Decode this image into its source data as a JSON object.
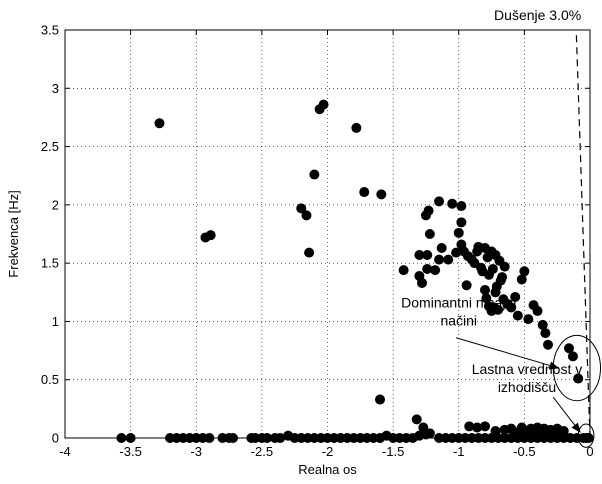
{
  "chart_data": {
    "type": "scatter",
    "title": "",
    "xlabel": "Realna os",
    "ylabel": "Frekvenca [Hz]",
    "xlim": [
      -4,
      0
    ],
    "ylim": [
      0,
      3.5
    ],
    "xticks": [
      -4,
      -3.5,
      -3,
      -2.5,
      -2,
      -1.5,
      -1,
      -0.5,
      0
    ],
    "xtick_labels": [
      "-4",
      "-3.5",
      "-3",
      "-2.5",
      "-2",
      "-1.5",
      "-1",
      "-0.5",
      "0"
    ],
    "yticks": [
      0,
      0.5,
      1,
      1.5,
      2,
      2.5,
      3,
      3.5
    ],
    "ytick_labels": [
      "0",
      "0.5",
      "1",
      "1.5",
      "2",
      "2.5",
      "3",
      "3.5"
    ],
    "grid": true,
    "marker_color": "#000000",
    "damping_line": {
      "label": "Dušenje 3.0%",
      "damping_ratio": 0.03,
      "from": [
        0,
        0
      ],
      "to": [
        -0.105,
        3.5
      ]
    },
    "annotations": [
      {
        "id": "dominant-modes",
        "lines": [
          "Dominantni nihajni",
          "načini"
        ],
        "target_circle_center": [
          -0.1,
          0.6
        ],
        "target_circle_radius": [
          0.18,
          0.28
        ]
      },
      {
        "id": "origin-eigenvalue",
        "lines": [
          "Lastna vrednost v",
          "izhodišču"
        ],
        "target_circle_center": [
          -0.03,
          0.02
        ],
        "target_circle_radius": [
          0.06,
          0.1
        ]
      }
    ],
    "series": [
      {
        "points": [
          [
            -3.28,
            2.7
          ],
          [
            -2.93,
            1.72
          ],
          [
            -2.89,
            1.74
          ],
          [
            -2.06,
            2.82
          ],
          [
            -2.03,
            2.86
          ],
          [
            -1.78,
            2.66
          ],
          [
            -2.1,
            2.26
          ],
          [
            -1.72,
            2.11
          ],
          [
            -1.59,
            2.09
          ],
          [
            -2.2,
            1.97
          ],
          [
            -2.16,
            1.91
          ],
          [
            -2.14,
            1.59
          ],
          [
            -1.25,
            1.91
          ],
          [
            -1.23,
            1.95
          ],
          [
            -1.15,
            2.03
          ],
          [
            -1.05,
            2.01
          ],
          [
            -0.98,
            1.99
          ],
          [
            -0.98,
            1.85
          ],
          [
            -1.0,
            1.76
          ],
          [
            -1.42,
            1.44
          ],
          [
            -1.3,
            1.57
          ],
          [
            -1.3,
            1.39
          ],
          [
            -1.28,
            1.33
          ],
          [
            -1.24,
            1.45
          ],
          [
            -1.24,
            1.57
          ],
          [
            -1.22,
            1.75
          ],
          [
            -1.18,
            1.44
          ],
          [
            -1.15,
            1.53
          ],
          [
            -1.13,
            1.63
          ],
          [
            -1.08,
            1.53
          ],
          [
            -1.02,
            1.59
          ],
          [
            -0.98,
            1.66
          ],
          [
            -0.96,
            1.6
          ],
          [
            -0.94,
            1.31
          ],
          [
            -0.93,
            1.56
          ],
          [
            -0.9,
            1.53
          ],
          [
            -0.88,
            1.5
          ],
          [
            -0.86,
            1.6
          ],
          [
            -0.85,
            1.64
          ],
          [
            -0.83,
            1.46
          ],
          [
            -0.82,
            1.43
          ],
          [
            -0.8,
            1.63
          ],
          [
            -0.78,
            1.55
          ],
          [
            -0.77,
            1.4
          ],
          [
            -0.75,
            1.6
          ],
          [
            -0.74,
            1.45
          ],
          [
            -0.72,
            1.57
          ],
          [
            -0.71,
            1.3
          ],
          [
            -0.69,
            1.52
          ],
          [
            -0.67,
            1.38
          ],
          [
            -0.65,
            1.47
          ],
          [
            -0.8,
            1.27
          ],
          [
            -0.79,
            1.2
          ],
          [
            -0.77,
            1.13
          ],
          [
            -0.75,
            1.09
          ],
          [
            -0.73,
            1.12
          ],
          [
            -0.72,
            1.25
          ],
          [
            -0.7,
            1.1
          ],
          [
            -0.68,
            1.35
          ],
          [
            -0.66,
            1.19
          ],
          [
            -0.63,
            1.15
          ],
          [
            -0.6,
            1.12
          ],
          [
            -0.57,
            1.21
          ],
          [
            -0.55,
            1.05
          ],
          [
            -0.52,
            1.36
          ],
          [
            -0.5,
            1.43
          ],
          [
            -0.47,
            1.02
          ],
          [
            -0.43,
            1.14
          ],
          [
            -0.4,
            1.09
          ],
          [
            -0.36,
            0.97
          ],
          [
            -0.34,
            0.9
          ],
          [
            -0.32,
            0.8
          ],
          [
            -0.16,
            0.77
          ],
          [
            -0.13,
            0.7
          ],
          [
            -0.09,
            0.51
          ],
          [
            -1.6,
            0.33
          ],
          [
            -1.32,
            0.16
          ],
          [
            -1.27,
            0.09
          ],
          [
            -1.25,
            0.03
          ],
          [
            -1.22,
            0.04
          ],
          [
            -1.3,
            0.02
          ],
          [
            -0.92,
            0.1
          ],
          [
            -0.86,
            0.09
          ],
          [
            -0.8,
            0.1
          ],
          [
            -0.72,
            0.06
          ],
          [
            -0.65,
            0.07
          ],
          [
            -0.6,
            0.08
          ],
          [
            -0.55,
            0.05
          ],
          [
            -0.52,
            0.09
          ],
          [
            -0.48,
            0.06
          ],
          [
            -0.45,
            0.08
          ],
          [
            -0.43,
            0.04
          ],
          [
            -0.4,
            0.09
          ],
          [
            -0.38,
            0.06
          ],
          [
            -0.35,
            0.08
          ],
          [
            -0.33,
            0.03
          ],
          [
            -0.3,
            0.07
          ],
          [
            -0.28,
            0.05
          ],
          [
            -0.25,
            0.08
          ],
          [
            -0.22,
            0.04
          ],
          [
            -0.2,
            0.06
          ],
          [
            -3.57,
            0.0
          ],
          [
            -3.5,
            0.0
          ],
          [
            -3.2,
            0.0
          ],
          [
            -3.15,
            0.0
          ],
          [
            -3.1,
            0.0
          ],
          [
            -3.05,
            0.0
          ],
          [
            -3.0,
            0.0
          ],
          [
            -2.95,
            0.0
          ],
          [
            -2.9,
            0.0
          ],
          [
            -2.8,
            0.0
          ],
          [
            -2.75,
            0.0
          ],
          [
            -2.72,
            0.0
          ],
          [
            -2.58,
            0.0
          ],
          [
            -2.55,
            0.0
          ],
          [
            -2.5,
            0.0
          ],
          [
            -2.46,
            0.0
          ],
          [
            -2.4,
            0.0
          ],
          [
            -2.36,
            0.0
          ],
          [
            -2.3,
            0.02
          ],
          [
            -2.25,
            0.0
          ],
          [
            -2.2,
            0.0
          ],
          [
            -2.15,
            0.0
          ],
          [
            -2.1,
            0.0
          ],
          [
            -2.05,
            0.0
          ],
          [
            -2.0,
            0.0
          ],
          [
            -1.95,
            0.0
          ],
          [
            -1.9,
            0.0
          ],
          [
            -1.85,
            0.0
          ],
          [
            -1.8,
            0.0
          ],
          [
            -1.75,
            0.0
          ],
          [
            -1.7,
            0.0
          ],
          [
            -1.65,
            0.0
          ],
          [
            -1.6,
            0.0
          ],
          [
            -1.55,
            0.02
          ],
          [
            -1.5,
            0.0
          ],
          [
            -1.45,
            0.0
          ],
          [
            -1.4,
            0.0
          ],
          [
            -1.35,
            0.0
          ],
          [
            -1.15,
            0.0
          ],
          [
            -1.1,
            0.0
          ],
          [
            -1.05,
            0.0
          ],
          [
            -1.0,
            0.0
          ],
          [
            -0.95,
            0.0
          ],
          [
            -0.9,
            0.0
          ],
          [
            -0.85,
            0.0
          ],
          [
            -0.8,
            0.0
          ],
          [
            -0.75,
            0.0
          ],
          [
            -0.7,
            0.0
          ],
          [
            -0.65,
            0.0
          ],
          [
            -0.6,
            0.0
          ],
          [
            -0.55,
            0.0
          ],
          [
            -0.5,
            0.0
          ],
          [
            -0.45,
            0.0
          ],
          [
            -0.4,
            0.0
          ],
          [
            -0.35,
            0.0
          ],
          [
            -0.3,
            0.0
          ],
          [
            -0.25,
            0.0
          ],
          [
            -0.2,
            0.0
          ],
          [
            -0.15,
            0.0
          ],
          [
            -0.1,
            0.0
          ],
          [
            -0.05,
            0.0
          ],
          [
            -0.03,
            0.0
          ],
          [
            -0.01,
            0.0
          ]
        ]
      }
    ]
  }
}
